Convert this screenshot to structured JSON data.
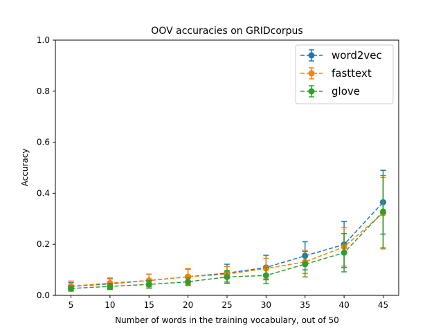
{
  "chart_data": {
    "type": "line",
    "title": "OOV accuracies on GRIDcorpus",
    "xlabel": "Number of words in the training vocabulary, out of 50",
    "ylabel": "Accuracy",
    "x": [
      5,
      10,
      15,
      20,
      25,
      30,
      35,
      40,
      45
    ],
    "xticks": [
      "5",
      "10",
      "15",
      "20",
      "25",
      "30",
      "35",
      "40",
      "45"
    ],
    "xlim": [
      3.0,
      47.0
    ],
    "ylim": [
      0.0,
      1.0
    ],
    "yticks": [
      "0.0",
      "0.2",
      "0.4",
      "0.6",
      "0.8",
      "1.0"
    ],
    "grid": false,
    "legend": "top-right",
    "series": [
      {
        "name": "word2vec",
        "color": "#1f77b4",
        "values": [
          0.035,
          0.045,
          0.058,
          0.073,
          0.087,
          0.109,
          0.155,
          0.199,
          0.365
        ],
        "errors": [
          0.015,
          0.02,
          0.025,
          0.03,
          0.035,
          0.048,
          0.055,
          0.09,
          0.125
        ]
      },
      {
        "name": "fasttext",
        "color": "#ff7f0e",
        "values": [
          0.036,
          0.048,
          0.058,
          0.073,
          0.083,
          0.105,
          0.131,
          0.19,
          0.322
        ],
        "errors": [
          0.02,
          0.02,
          0.025,
          0.032,
          0.03,
          0.04,
          0.045,
          0.075,
          0.14
        ]
      },
      {
        "name": "glove",
        "color": "#2ca02c",
        "values": [
          0.027,
          0.035,
          0.043,
          0.053,
          0.072,
          0.078,
          0.122,
          0.167,
          0.328
        ],
        "errors": [
          0.01,
          0.012,
          0.015,
          0.015,
          0.025,
          0.032,
          0.05,
          0.075,
          0.142
        ]
      }
    ]
  }
}
